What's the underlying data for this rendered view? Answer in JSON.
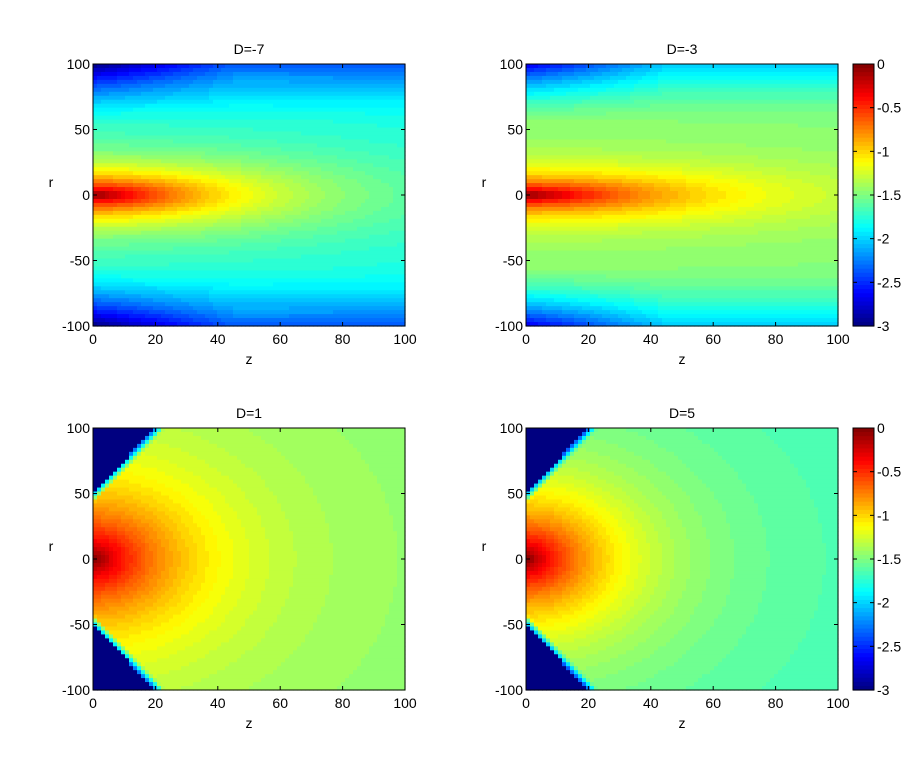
{
  "chart_data": [
    {
      "type": "heatmap",
      "title": "D=-7",
      "xlabel": "z",
      "ylabel": "r",
      "xlim": [
        0,
        100
      ],
      "ylim": [
        -100,
        100
      ],
      "xticks": [
        "0",
        "20",
        "40",
        "60",
        "80",
        "100"
      ],
      "yticks": [
        "100",
        "50",
        "0",
        "-50",
        "-100"
      ],
      "field": {
        "model": "core",
        "peak": 0,
        "core_width_r": 28,
        "core_length_z": 55,
        "far_level": -1.85,
        "edge_min": -3
      }
    },
    {
      "type": "heatmap",
      "title": "D=-3",
      "xlabel": "z",
      "ylabel": "r",
      "xlim": [
        0,
        100
      ],
      "ylim": [
        -100,
        100
      ],
      "xticks": [
        "0",
        "20",
        "40",
        "60",
        "80",
        "100"
      ],
      "yticks": [
        "100",
        "50",
        "0",
        "-50",
        "-100"
      ],
      "field": {
        "model": "core",
        "peak": 0,
        "core_width_r": 20,
        "core_length_z": 55,
        "far_level": -1.5,
        "edge_min": -2.7
      }
    },
    {
      "type": "heatmap",
      "title": "D=1",
      "xlabel": "z",
      "ylabel": "r",
      "xlim": [
        0,
        100
      ],
      "ylim": [
        -100,
        100
      ],
      "xticks": [
        "0",
        "20",
        "40",
        "60",
        "80",
        "100"
      ],
      "yticks": [
        "100",
        "50",
        "0",
        "-50",
        "-100"
      ],
      "field": {
        "model": "cone",
        "peak": 0,
        "cone_apex_r": 50,
        "cone_end_z": 20,
        "far_level": -1.4,
        "shadow_level": -3
      }
    },
    {
      "type": "heatmap",
      "title": "D=5",
      "xlabel": "z",
      "ylabel": "r",
      "xlim": [
        0,
        100
      ],
      "ylim": [
        -100,
        100
      ],
      "xticks": [
        "0",
        "20",
        "40",
        "60",
        "80",
        "100"
      ],
      "yticks": [
        "100",
        "50",
        "0",
        "-50",
        "-100"
      ],
      "field": {
        "model": "cone",
        "peak": 0,
        "cone_apex_r": 50,
        "cone_end_z": 20,
        "far_level": -1.6,
        "shadow_level": -3
      }
    }
  ],
  "colorbars": [
    {
      "for": "top-row",
      "range": [
        -3,
        0
      ],
      "ticks": [
        "0",
        "-0.5",
        "-1",
        "-1.5",
        "-2",
        "-2.5",
        "-3"
      ]
    },
    {
      "for": "bottom-row",
      "range": [
        -3,
        0
      ],
      "ticks": [
        "0",
        "-0.5",
        "-1",
        "-1.5",
        "-2",
        "-2.5",
        "-3"
      ]
    }
  ],
  "colormap": "jet"
}
